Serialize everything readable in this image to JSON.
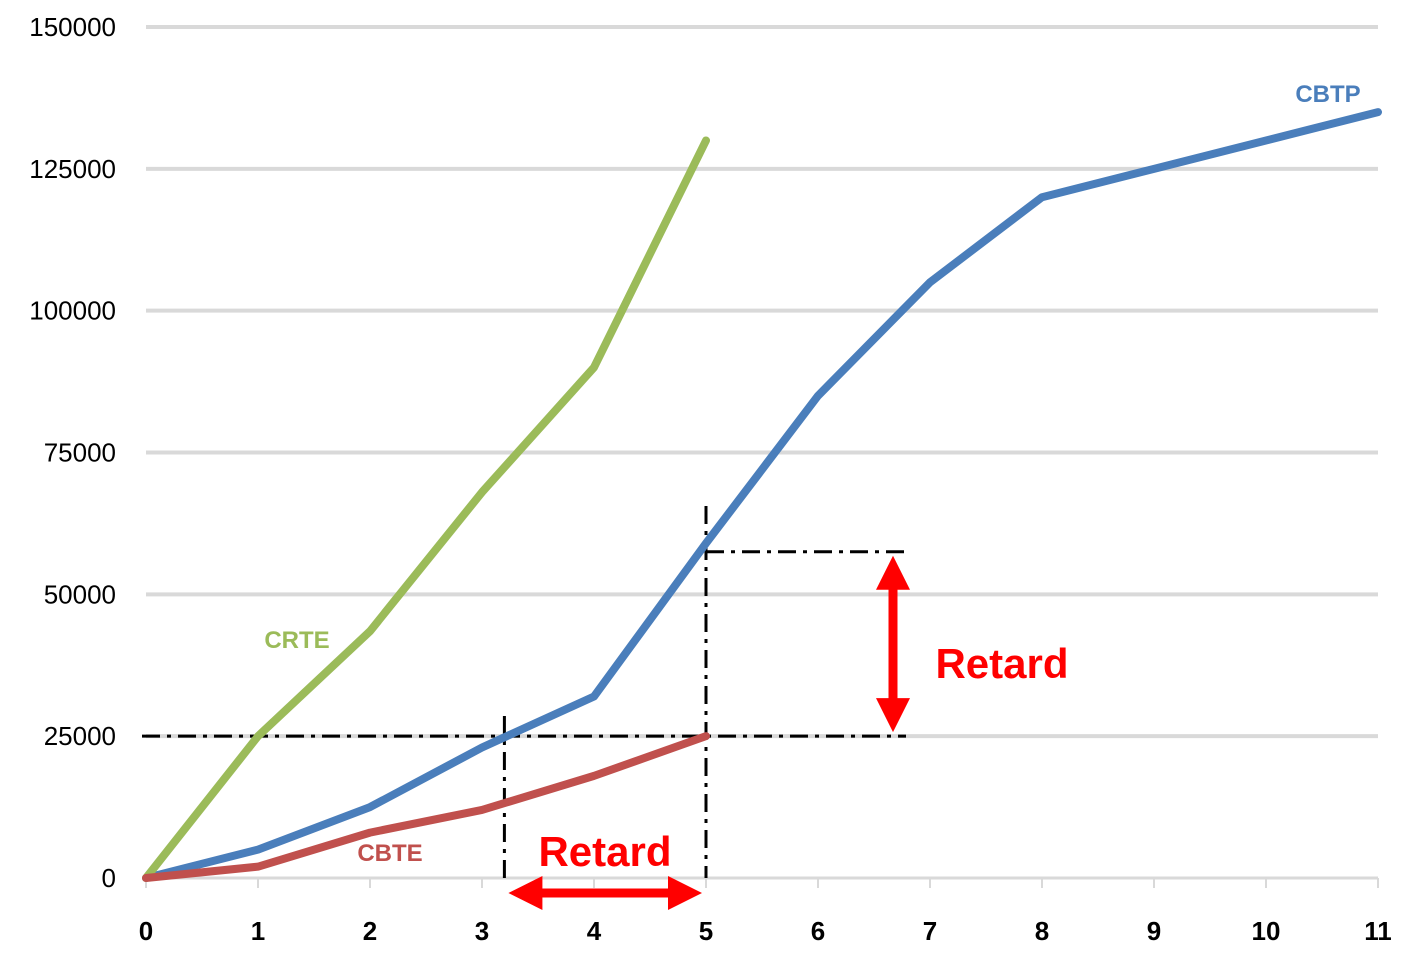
{
  "chart_data": {
    "type": "line",
    "title": "",
    "xlabel": "",
    "ylabel": "",
    "xlim": [
      0,
      11
    ],
    "ylim": [
      0,
      150000
    ],
    "grid": true,
    "legend": "none",
    "x_ticks": [
      "0",
      "1",
      "2",
      "3",
      "4",
      "5",
      "6",
      "7",
      "8",
      "9",
      "10",
      "11"
    ],
    "y_ticks": [
      "0",
      "25000",
      "50000",
      "75000",
      "100000",
      "125000",
      "150000"
    ],
    "series": [
      {
        "name": "CBTP",
        "color": "#4a7ebb",
        "x": [
          0,
          1,
          2,
          3,
          4,
          5,
          6,
          7,
          8,
          9,
          10,
          11
        ],
        "values": [
          0,
          5000,
          12500,
          23000,
          32000,
          59000,
          85000,
          105000,
          120000,
          125000,
          130000,
          135000
        ]
      },
      {
        "name": "CRTE",
        "color": "#9bbb59",
        "x": [
          0,
          1,
          2,
          3,
          4,
          5
        ],
        "values": [
          0,
          25000,
          43500,
          68000,
          90000,
          130000
        ]
      },
      {
        "name": "CBTE",
        "color": "#c0504d",
        "x": [
          0,
          1,
          2,
          3,
          4,
          5
        ],
        "values": [
          0,
          2000,
          8000,
          12000,
          18000,
          25000
        ]
      }
    ],
    "annotations": [
      {
        "text": "Retard",
        "color": "#ff0000",
        "kind": "schedule-delay"
      },
      {
        "text": "Retard",
        "color": "#ff0000",
        "kind": "cost-delay"
      }
    ],
    "reference_lines": {
      "value_level": 25000,
      "planned_level": 57500,
      "date_actual": 5,
      "date_planned": 3.2
    }
  }
}
